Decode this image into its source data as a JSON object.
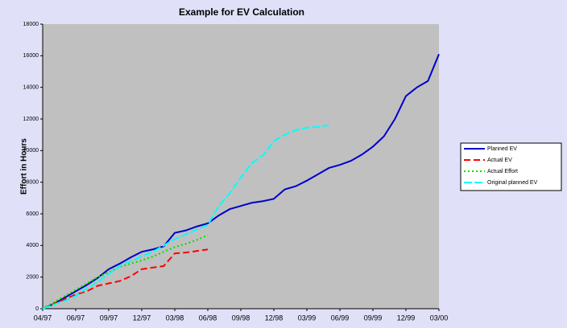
{
  "chart_data": {
    "type": "line",
    "title": "Example for EV Calculation",
    "y_label": "Effort in Hours",
    "categories": [
      "04/97",
      null,
      null,
      "06/97",
      null,
      null,
      "09/97",
      null,
      null,
      "12/97",
      null,
      null,
      "03/98",
      null,
      null,
      "06/98",
      null,
      null,
      "09/98",
      null,
      null,
      "12/98",
      null,
      null,
      "03/99",
      null,
      null,
      "06/99",
      null,
      null,
      "09/99",
      null,
      null,
      "12/99",
      null,
      null,
      "03/00"
    ],
    "ylim": [
      0,
      18000
    ],
    "yticks": [
      0,
      2000,
      4000,
      6000,
      8000,
      10000,
      12000,
      14000,
      16000,
      18000
    ],
    "grid": false,
    "legend": "right",
    "series": [
      {
        "name": "Planned EV",
        "color": "#0000cc",
        "line_style": "solid",
        "values": [
          0,
          300,
          700,
          1100,
          1500,
          1950,
          2500,
          2850,
          3250,
          3600,
          3750,
          3950,
          4800,
          4950,
          5200,
          5400,
          5900,
          6300,
          6500,
          6700,
          6800,
          6950,
          7550,
          7750,
          8100,
          8500,
          8900,
          9100,
          9350,
          9750,
          10250,
          10900,
          12000,
          13450,
          14000,
          14400,
          16100
        ]
      },
      {
        "name": "Actual EV",
        "color": "#ff0000",
        "line_style": "dashed",
        "values": [
          0,
          300,
          600,
          900,
          1100,
          1450,
          1600,
          1750,
          2050,
          2500,
          2600,
          2700,
          3500,
          3550,
          3650,
          3750,
          null,
          null,
          null,
          null,
          null,
          null,
          null,
          null,
          null,
          null,
          null,
          null,
          null,
          null,
          null,
          null,
          null,
          null,
          null,
          null,
          null
        ]
      },
      {
        "name": "Actual Effort",
        "color": "#00dd00",
        "line_style": "dotted",
        "values": [
          0,
          400,
          800,
          1200,
          1600,
          2000,
          2300,
          2650,
          2850,
          3050,
          3300,
          3600,
          3900,
          4100,
          4350,
          4650,
          null,
          null,
          null,
          null,
          null,
          null,
          null,
          null,
          null,
          null,
          null,
          null,
          null,
          null,
          null,
          null,
          null,
          null,
          null,
          null,
          null
        ]
      },
      {
        "name": "Original planned EV",
        "color": "#00ffff",
        "line_style": "long-dash",
        "values": [
          0,
          250,
          500,
          800,
          1300,
          1700,
          2200,
          2700,
          3000,
          3300,
          3600,
          4000,
          4400,
          4700,
          5000,
          5300,
          6500,
          7300,
          8300,
          9200,
          9700,
          10600,
          11000,
          11300,
          11450,
          11500,
          11600,
          null,
          null,
          null,
          null,
          null,
          null,
          null,
          null,
          null,
          null
        ]
      }
    ]
  }
}
